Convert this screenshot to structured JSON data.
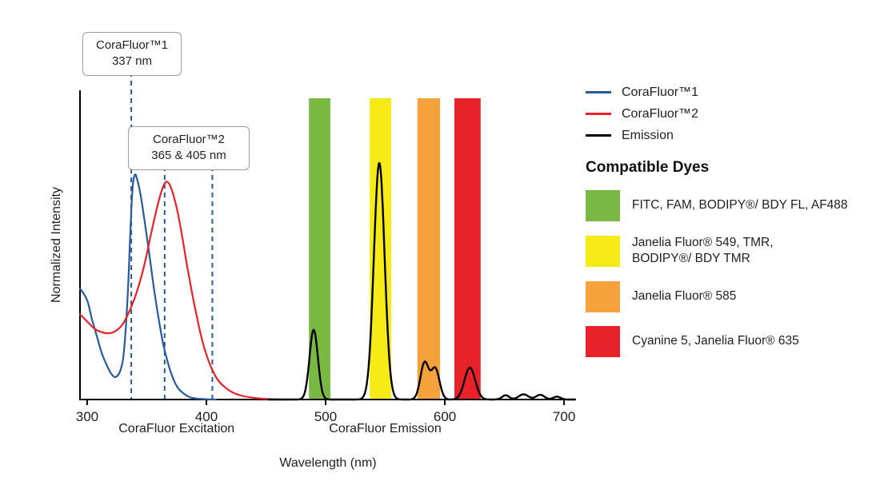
{
  "colors": {
    "blue": "#27599B",
    "red": "#E8222A",
    "black": "#000000",
    "green_band": "#79B943",
    "yellow_band": "#F6EB16",
    "orange_band": "#F5A23C",
    "red_band": "#E8222A",
    "axis": "#000000"
  },
  "chart_data": {
    "type": "line",
    "title": "",
    "xlabel": "Wavelength (nm)",
    "ylabel": "Normalized Intensity",
    "x_range": [
      294,
      710
    ],
    "x_ticks": [
      300,
      400,
      500,
      600,
      700
    ],
    "ylim": [
      0,
      1.3
    ],
    "grid": false,
    "legend_position": "right",
    "annotation_line_color": "#27599B",
    "section_labels": [
      {
        "text": "CoraFluor Excitation",
        "nm": 375
      },
      {
        "text": "CoraFluor Emission",
        "nm": 550
      }
    ],
    "annotations": [
      {
        "label": "CoraFluor™1",
        "sublabel": "337 nm",
        "lines_nm": [
          337
        ]
      },
      {
        "label": "CoraFluor™2",
        "sublabel": "365 & 405 nm",
        "lines_nm": [
          365,
          405
        ]
      }
    ],
    "bands": [
      {
        "id": "green",
        "dye": "FITC, FAM, BODIPY®/ BDY FL, AF488",
        "from": 486,
        "to": 504,
        "color": "#79B943"
      },
      {
        "id": "yellow",
        "dye": "Janelia Fluor® 549, TMR, BODIPY®/ BDY TMR",
        "from": 537,
        "to": 555,
        "color": "#F6EB16"
      },
      {
        "id": "orange",
        "dye": "Janelia Fluor® 585",
        "from": 577,
        "to": 596,
        "color": "#F5A23C"
      },
      {
        "id": "red",
        "dye": "Cyanine 5, Janelia Fluor® 635",
        "from": 608,
        "to": 630,
        "color": "#E8222A"
      }
    ],
    "series": [
      {
        "id": "corafluor1-excitation",
        "name": "CoraFluor™1",
        "color": "#27599B",
        "width": 2.2,
        "points": [
          [
            294,
            0.47
          ],
          [
            300,
            0.42
          ],
          [
            304,
            0.34
          ],
          [
            308,
            0.27
          ],
          [
            312,
            0.2
          ],
          [
            316,
            0.15
          ],
          [
            320,
            0.11
          ],
          [
            324,
            0.095
          ],
          [
            328,
            0.125
          ],
          [
            331,
            0.21
          ],
          [
            334,
            0.44
          ],
          [
            336,
            0.68
          ],
          [
            338,
            0.89
          ],
          [
            340,
            0.95
          ],
          [
            342,
            0.93
          ],
          [
            345,
            0.86
          ],
          [
            348,
            0.76
          ],
          [
            352,
            0.62
          ],
          [
            356,
            0.47
          ],
          [
            360,
            0.34
          ],
          [
            364,
            0.23
          ],
          [
            368,
            0.15
          ],
          [
            372,
            0.09
          ],
          [
            376,
            0.05
          ],
          [
            381,
            0.025
          ],
          [
            386,
            0.01
          ],
          [
            392,
            0.004
          ],
          [
            400,
            0.001
          ],
          [
            408,
            0
          ]
        ]
      },
      {
        "id": "corafluor2-excitation",
        "name": "CoraFluor™2",
        "color": "#E8222A",
        "width": 2.2,
        "points": [
          [
            294,
            0.36
          ],
          [
            300,
            0.33
          ],
          [
            306,
            0.3
          ],
          [
            312,
            0.285
          ],
          [
            318,
            0.28
          ],
          [
            324,
            0.29
          ],
          [
            330,
            0.32
          ],
          [
            336,
            0.38
          ],
          [
            342,
            0.46
          ],
          [
            348,
            0.57
          ],
          [
            354,
            0.71
          ],
          [
            359,
            0.82
          ],
          [
            363,
            0.89
          ],
          [
            366,
            0.92
          ],
          [
            369,
            0.91
          ],
          [
            372,
            0.87
          ],
          [
            376,
            0.79
          ],
          [
            380,
            0.68
          ],
          [
            384,
            0.56
          ],
          [
            388,
            0.45
          ],
          [
            392,
            0.35
          ],
          [
            396,
            0.26
          ],
          [
            400,
            0.19
          ],
          [
            405,
            0.125
          ],
          [
            410,
            0.08
          ],
          [
            416,
            0.05
          ],
          [
            422,
            0.03
          ],
          [
            429,
            0.017
          ],
          [
            437,
            0.009
          ],
          [
            446,
            0.004
          ],
          [
            456,
            0.001
          ],
          [
            466,
            0
          ]
        ]
      },
      {
        "id": "emission",
        "name": "Emission",
        "color": "#000000",
        "width": 2.4,
        "range": [
          452,
          709
        ],
        "peaks": [
          {
            "center": 490,
            "height": 0.295,
            "width": 3.5
          },
          {
            "center": 545,
            "height": 1.0,
            "width": 4.5
          },
          {
            "center": 583,
            "height": 0.155,
            "width": 3.5
          },
          {
            "center": 592,
            "height": 0.13,
            "width": 3.5
          },
          {
            "center": 621,
            "height": 0.135,
            "width": 4.5
          },
          {
            "center": 651,
            "height": 0.018,
            "width": 3
          },
          {
            "center": 666,
            "height": 0.022,
            "width": 4
          },
          {
            "center": 680,
            "height": 0.02,
            "width": 3.5
          },
          {
            "center": 694,
            "height": 0.012,
            "width": 3
          }
        ]
      }
    ]
  },
  "legend": {
    "line_items": [
      {
        "label": "CoraFluor™1",
        "color": "#27599B"
      },
      {
        "label": "CoraFluor™2",
        "color": "#E8222A"
      },
      {
        "label": "Emission",
        "color": "#000000"
      }
    ],
    "dyes_heading": "Compatible Dyes",
    "dye_items": [
      {
        "label": "FITC, FAM, BODIPY®/ BDY FL, AF488",
        "color": "#79B943"
      },
      {
        "label": "Janelia Fluor® 549, TMR,\nBODIPY®/ BDY TMR",
        "color": "#F6EB16"
      },
      {
        "label": "Janelia Fluor® 585",
        "color": "#F5A23C"
      },
      {
        "label": "Cyanine 5, Janelia Fluor® 635",
        "color": "#E8222A"
      }
    ]
  }
}
